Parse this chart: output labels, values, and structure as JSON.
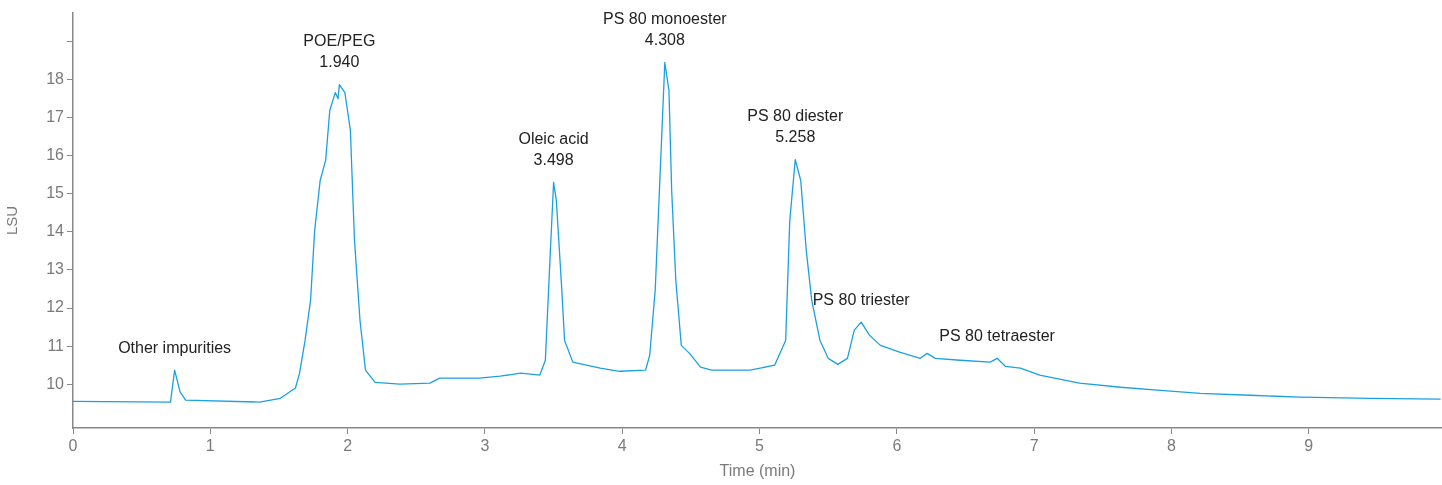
{
  "chart_data": {
    "type": "line",
    "xlabel": "Time (min)",
    "ylabel": "LSU",
    "xlim": [
      0,
      9.97
    ],
    "xticks": [
      0,
      1,
      2,
      3,
      4,
      5,
      6,
      7,
      8,
      9
    ],
    "ylim": [
      8.85,
      19.75
    ],
    "yticks": [
      10,
      11,
      12,
      13,
      14,
      15,
      16,
      17,
      18,
      {
        "value": 19,
        "label": null
      }
    ],
    "grid": false,
    "legend": false,
    "marker": "none",
    "line_style": "solid",
    "series": [
      {
        "color": "#1ba1e2",
        "x": [
          0,
          0.71,
          0.74,
          0.78,
          0.82,
          1.36,
          1.51,
          1.62,
          1.65,
          1.69,
          1.73,
          1.76,
          1.8,
          1.84,
          1.87,
          1.91,
          1.93,
          1.94,
          1.98,
          2.02,
          2.05,
          2.09,
          2.13,
          2.2,
          2.38,
          2.6,
          2.67,
          2.96,
          3.11,
          3.26,
          3.4,
          3.44,
          3.47,
          3.5,
          3.52,
          3.56,
          3.58,
          3.64,
          3.84,
          3.98,
          4.17,
          4.2,
          4.24,
          4.28,
          4.31,
          4.34,
          4.36,
          4.39,
          4.43,
          4.49,
          4.57,
          4.65,
          4.93,
          5.11,
          5.19,
          5.22,
          5.26,
          5.3,
          5.34,
          5.38,
          5.44,
          5.5,
          5.57,
          5.64,
          5.69,
          5.74,
          5.8,
          5.88,
          6.02,
          6.17,
          6.22,
          6.28,
          6.46,
          6.68,
          6.73,
          6.79,
          6.9,
          7.04,
          7.33,
          7.63,
          7.92,
          8.21,
          8.57,
          8.94,
          9.45,
          9.96
        ],
        "values": [
          9.55,
          9.53,
          10.37,
          9.8,
          9.58,
          9.53,
          9.63,
          9.9,
          10.29,
          11.15,
          12.2,
          14.04,
          15.35,
          15.88,
          17.19,
          17.66,
          17.5,
          17.87,
          17.66,
          16.67,
          13.78,
          11.68,
          10.37,
          10.05,
          10.0,
          10.03,
          10.16,
          10.16,
          10.21,
          10.29,
          10.24,
          10.63,
          12.99,
          15.3,
          14.83,
          12.47,
          11.15,
          10.58,
          10.42,
          10.34,
          10.37,
          10.76,
          12.47,
          15.88,
          18.45,
          17.72,
          15.09,
          12.73,
          11.02,
          10.81,
          10.45,
          10.37,
          10.37,
          10.5,
          11.15,
          14.3,
          15.9,
          15.35,
          13.52,
          12.2,
          11.15,
          10.68,
          10.52,
          10.68,
          11.42,
          11.63,
          11.29,
          11.02,
          10.84,
          10.68,
          10.81,
          10.68,
          10.63,
          10.58,
          10.68,
          10.47,
          10.42,
          10.24,
          10.03,
          9.92,
          9.84,
          9.76,
          9.71,
          9.66,
          9.63,
          9.61
        ]
      }
    ],
    "annotations": [
      {
        "text": "Other impurities",
        "x": 0.74,
        "y": 10.37
      },
      {
        "text": "POE/PEG\n1.940",
        "x": 1.94,
        "y": 17.87
      },
      {
        "text": "Oleic acid\n3.498",
        "x": 3.5,
        "y": 15.3
      },
      {
        "text": "PS 80 monoester\n4.308",
        "x": 4.31,
        "y": 18.45
      },
      {
        "text": "PS 80 diester\n5.258",
        "x": 5.26,
        "y": 15.9
      },
      {
        "text": "PS 80 triester",
        "x": 5.74,
        "y": 11.63
      },
      {
        "text": "PS 80 tetraester",
        "x": 6.73,
        "y": 10.68
      }
    ]
  }
}
